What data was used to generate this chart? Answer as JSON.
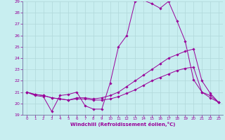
{
  "xlabel": "Windchill (Refroidissement éolien,°C)",
  "bg_color": "#c8eef0",
  "grid_color": "#b0d8da",
  "line_color": "#990099",
  "spine_color": "#7070a0",
  "xlim": [
    -0.5,
    23.5
  ],
  "ylim": [
    19,
    29
  ],
  "xticks": [
    0,
    1,
    2,
    3,
    4,
    5,
    6,
    7,
    8,
    9,
    10,
    11,
    12,
    13,
    14,
    15,
    16,
    17,
    18,
    19,
    20,
    21,
    22,
    23
  ],
  "yticks": [
    19,
    20,
    21,
    22,
    23,
    24,
    25,
    26,
    27,
    28,
    29
  ],
  "line1_x": [
    0,
    1,
    2,
    3,
    4,
    5,
    6,
    7,
    8,
    9,
    10,
    11,
    12,
    13,
    14,
    15,
    16,
    17,
    18,
    19,
    20,
    21,
    22,
    23
  ],
  "line1_y": [
    21.0,
    20.7,
    20.6,
    19.3,
    20.7,
    20.8,
    21.0,
    19.8,
    19.5,
    19.5,
    21.8,
    25.0,
    26.0,
    29.0,
    29.1,
    28.8,
    28.4,
    29.0,
    27.3,
    25.5,
    22.1,
    21.0,
    20.7,
    20.1
  ],
  "line2_x": [
    0,
    1,
    2,
    3,
    4,
    5,
    6,
    7,
    8,
    9,
    10,
    11,
    12,
    13,
    14,
    15,
    16,
    17,
    18,
    19,
    20,
    21,
    22,
    23
  ],
  "line2_y": [
    21.0,
    20.8,
    20.7,
    20.5,
    20.4,
    20.3,
    20.5,
    20.5,
    20.4,
    20.5,
    20.7,
    21.0,
    21.5,
    22.0,
    22.5,
    23.0,
    23.5,
    24.0,
    24.3,
    24.6,
    24.8,
    22.0,
    20.9,
    20.1
  ],
  "line3_x": [
    0,
    1,
    2,
    3,
    4,
    5,
    6,
    7,
    8,
    9,
    10,
    11,
    12,
    13,
    14,
    15,
    16,
    17,
    18,
    19,
    20,
    21,
    22,
    23
  ],
  "line3_y": [
    21.0,
    20.8,
    20.7,
    20.5,
    20.4,
    20.3,
    20.4,
    20.4,
    20.3,
    20.3,
    20.4,
    20.6,
    20.9,
    21.2,
    21.6,
    22.0,
    22.3,
    22.6,
    22.9,
    23.1,
    23.2,
    21.0,
    20.5,
    20.1
  ]
}
